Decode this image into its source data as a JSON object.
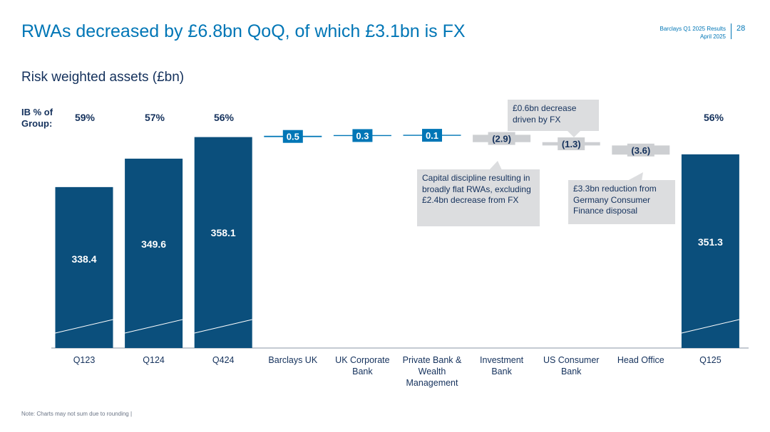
{
  "header": {
    "title": "RWAs decreased by £6.8bn QoQ, of which £3.1bn is FX",
    "doc_name": "Barclays Q1 2025 Results",
    "doc_date": "April 2025",
    "page_number": "28"
  },
  "subtitle": "Risk weighted assets (£bn)",
  "ib_share": {
    "label_line1": "IB % of",
    "label_line2": "Group:",
    "q123": "59%",
    "q124": "57%",
    "q424": "56%",
    "q125": "56%"
  },
  "callouts": {
    "us_consumer": "£0.6bn decrease driven by FX",
    "investment_bank": "Capital discipline resulting in broadly flat RWAs, excluding £2.4bn decrease from FX",
    "head_office": "£3.3bn reduction from Germany Consumer Finance disposal"
  },
  "footnote": "Note: Charts may not sum due to rounding |",
  "colors": {
    "navy": "#0b4f7c",
    "blue": "#0076b6",
    "gray": "#cdcfd2",
    "text": "#14315c"
  },
  "chart_data": {
    "type": "waterfall",
    "title": "Risk weighted assets (£bn)",
    "categories": [
      "Q123",
      "Q124",
      "Q424",
      "Barclays UK",
      "UK Corporate Bank",
      "Private Bank & Wealth Management",
      "Investment Bank",
      "US Consumer Bank",
      "Head Office",
      "Q125"
    ],
    "category_lines": [
      [
        "Q123"
      ],
      [
        "Q124"
      ],
      [
        "Q424"
      ],
      [
        "Barclays UK"
      ],
      [
        "UK Corporate",
        "Bank"
      ],
      [
        "Private Bank &",
        "Wealth",
        "Management"
      ],
      [
        "Investment",
        "Bank"
      ],
      [
        "US Consumer",
        "Bank"
      ],
      [
        "Head Office"
      ],
      [
        "Q125"
      ]
    ],
    "kinds": [
      "total",
      "total",
      "total",
      "delta",
      "delta",
      "delta",
      "delta",
      "delta",
      "delta",
      "total"
    ],
    "values": [
      338.4,
      349.6,
      358.1,
      0.5,
      0.3,
      0.1,
      -2.9,
      -1.3,
      -3.6,
      351.3
    ],
    "labels": [
      "338.4",
      "349.6",
      "358.1",
      "0.5",
      "0.3",
      "0.1",
      "(2.9)",
      "(1.3)",
      "(3.6)",
      "351.3"
    ],
    "ylim": [
      275,
      365
    ],
    "axis_break": true
  }
}
